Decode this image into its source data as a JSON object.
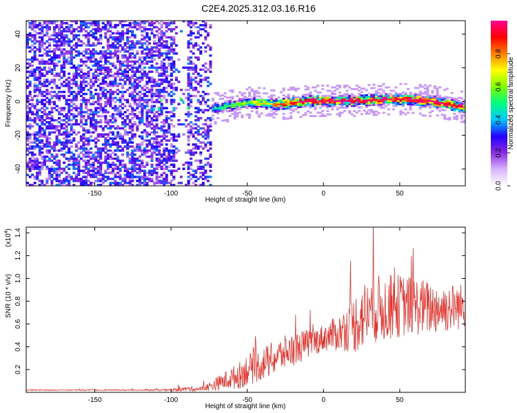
{
  "title": "C2E4.2025.312.03.16.R16",
  "chart_data": [
    {
      "type": "heatmap",
      "name": "spectrogram",
      "xlabel": "Height of straight line (km)",
      "ylabel": "Frequency (Hz)",
      "xlim": [
        -195,
        93
      ],
      "ylim": [
        -50,
        48
      ],
      "xticks": [
        -150,
        -100,
        -50,
        0,
        50
      ],
      "yticks": [
        -40,
        -20,
        0,
        20,
        40
      ],
      "colorbar": {
        "label": "Normalized spectral amplitude",
        "range": [
          0,
          1
        ],
        "ticks": [
          "0.0",
          "0.2",
          "0.4",
          "0.6",
          "0.8"
        ],
        "tick_values": [
          0,
          0.2,
          0.4,
          0.6,
          0.8
        ],
        "colors": [
          "#ffffff",
          "#d8b4ff",
          "#8a2be2",
          "#2400ff",
          "#00c8ff",
          "#00ff80",
          "#80ff00",
          "#ffff00",
          "#ff8000",
          "#ff0000",
          "#ff0090"
        ]
      },
      "features": [
        {
          "description": "broadband noise",
          "x_range": [
            -195,
            -75
          ],
          "freq_range": [
            -50,
            48
          ],
          "amplitude": 0.15
        },
        {
          "description": "bright tone",
          "x_range": [
            -75,
            93
          ],
          "center_freq": [
            [
              -75,
              -5
            ],
            [
              -50,
              -1
            ],
            [
              -30,
              -2
            ],
            [
              -10,
              0
            ],
            [
              20,
              0
            ],
            [
              40,
              1
            ],
            [
              55,
              1
            ],
            [
              70,
              0
            ],
            [
              93,
              -4
            ]
          ],
          "amplitude": [
            0.35,
            0.95
          ]
        }
      ]
    },
    {
      "type": "line",
      "name": "snr",
      "xlabel": "Height of straight line (km)",
      "ylabel": "SNR (10 * v/v)",
      "scale_label_prefix": "(x10",
      "scale_label_exp": "4",
      "scale_label_suffix": ")",
      "xlim": [
        -195,
        93
      ],
      "ylim": [
        0,
        1.45
      ],
      "xticks": [
        -150,
        -100,
        -50,
        0,
        50
      ],
      "yticks": [
        0.2,
        0.4,
        0.6,
        0.8,
        1.0,
        1.2,
        1.4
      ],
      "ytick_labels": [
        "0.2",
        "0.4",
        "0.6",
        "0.8",
        "1.0",
        "1.2",
        "1.4"
      ],
      "series": [
        {
          "name": "SNR",
          "color": "#e8302a",
          "x": [
            -195,
            -180,
            -160,
            -140,
            -120,
            -100,
            -90,
            -80,
            -75,
            -65,
            -55,
            -50,
            -45,
            -35,
            -25,
            -15,
            -10,
            -5,
            0,
            5,
            10,
            15,
            20,
            25,
            30,
            40,
            50,
            60,
            70,
            80,
            93
          ],
          "y": [
            0.02,
            0.02,
            0.02,
            0.02,
            0.02,
            0.02,
            0.03,
            0.03,
            0.05,
            0.1,
            0.15,
            0.2,
            0.22,
            0.28,
            0.35,
            0.4,
            0.43,
            0.45,
            0.48,
            0.5,
            0.52,
            0.56,
            0.6,
            0.66,
            0.72,
            0.74,
            0.76,
            0.76,
            0.74,
            0.74,
            0.76
          ],
          "noise": [
            0.005,
            0.005,
            0.005,
            0.005,
            0.006,
            0.01,
            0.02,
            0.02,
            0.04,
            0.08,
            0.12,
            0.14,
            0.14,
            0.15,
            0.15,
            0.14,
            0.13,
            0.12,
            0.12,
            0.14,
            0.16,
            0.2,
            0.26,
            0.3,
            0.3,
            0.3,
            0.28,
            0.26,
            0.24,
            0.22,
            0.2
          ]
        }
      ]
    }
  ]
}
